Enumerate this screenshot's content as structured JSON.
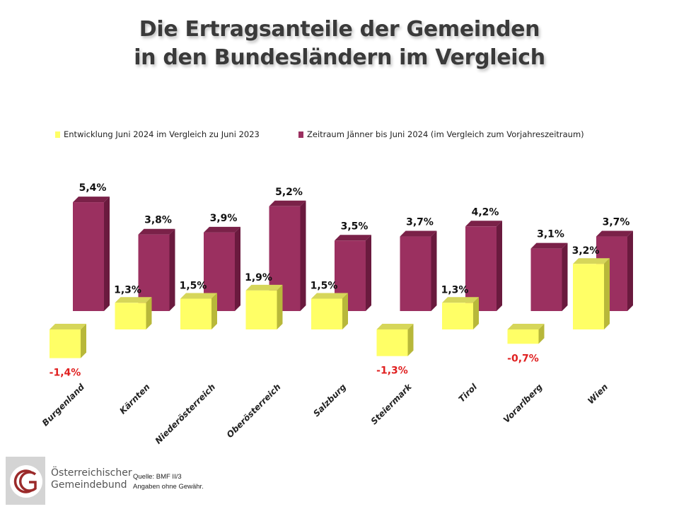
{
  "title_line1": "Die Ertragsanteile der Gemeinden",
  "title_line2": "in den Bundesländern im Vergleich",
  "legend": {
    "series1": "Entwicklung Juni 2024 im Vergleich zu Juni 2023",
    "series2": "Zeitraum Jänner bis Juni 2024 (im Vergleich zum Vorjahreszeitraum)"
  },
  "colors": {
    "series1": "#ffff66",
    "series1_side": "#b8b83a",
    "series1_top": "#d6d65a",
    "series2": "#9b3060",
    "series2_side": "#6a1a3e",
    "series2_top": "#7a2148",
    "negative_label": "#e02020",
    "positive_label": "#111111"
  },
  "footer": {
    "org_line1": "Österreichischer",
    "org_line2": "Gemeindebund",
    "source_line1": "Quelle: BMF II/3",
    "source_line2": "Angaben ohne Gewähr."
  },
  "chart_data": {
    "type": "bar",
    "title": "Die Ertragsanteile der Gemeinden in den Bundesländern im Vergleich",
    "xlabel": "",
    "ylabel": "",
    "grid": false,
    "legend_position": "top",
    "categories": [
      "Burgenland",
      "Kärnten",
      "Niederösterreich",
      "Oberösterreich",
      "Salzburg",
      "Steiermark",
      "Tirol",
      "Vorarlberg",
      "Wien"
    ],
    "series": [
      {
        "name": "Entwicklung Juni 2024 im Vergleich zu Juni 2023",
        "values": [
          -1.4,
          1.3,
          1.5,
          1.9,
          1.5,
          -1.3,
          1.3,
          -0.7,
          3.2
        ],
        "labels": [
          "-1,4%",
          "1,3%",
          "1,5%",
          "1,9%",
          "1,5%",
          "-1,3%",
          "1,3%",
          "-0,7%",
          "3,2%"
        ]
      },
      {
        "name": "Zeitraum Jänner bis Juni 2024 (im Vergleich zum Vorjahreszeitraum)",
        "values": [
          5.4,
          3.8,
          3.9,
          5.2,
          3.5,
          3.7,
          4.2,
          3.1,
          3.7
        ],
        "labels": [
          "5,4%",
          "3,8%",
          "3,9%",
          "5,2%",
          "3,5%",
          "3,7%",
          "4,2%",
          "3,1%",
          "3,7%"
        ]
      }
    ],
    "unit": "%"
  }
}
